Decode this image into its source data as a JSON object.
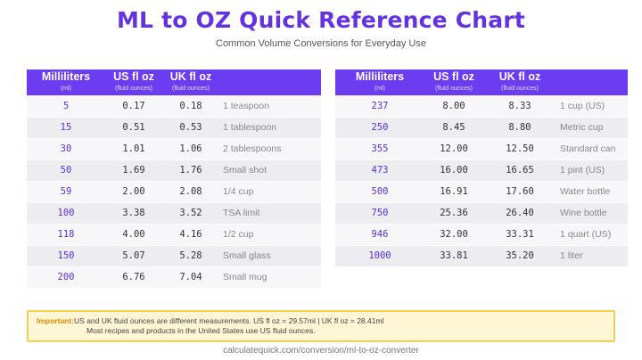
{
  "title": "ML to OZ Quick Reference Chart",
  "subtitle": "Common Volume Conversions for Everyday Use",
  "headers": {
    "ml": "Milliliters",
    "ml_sub": "(ml)",
    "us": "US fl oz",
    "us_sub": "(fluid ounces)",
    "uk": "UK fl oz",
    "uk_sub": "(fluid ounces)"
  },
  "left_rows": [
    {
      "ml": "5",
      "us": "0.17",
      "uk": "0.18",
      "note": "1 teaspoon"
    },
    {
      "ml": "15",
      "us": "0.51",
      "uk": "0.53",
      "note": "1 tablespoon"
    },
    {
      "ml": "30",
      "us": "1.01",
      "uk": "1.06",
      "note": "2 tablespoons"
    },
    {
      "ml": "50",
      "us": "1.69",
      "uk": "1.76",
      "note": "Small shot"
    },
    {
      "ml": "59",
      "us": "2.00",
      "uk": "2.08",
      "note": "1/4 cup"
    },
    {
      "ml": "100",
      "us": "3.38",
      "uk": "3.52",
      "note": "TSA limit"
    },
    {
      "ml": "118",
      "us": "4.00",
      "uk": "4.16",
      "note": "1/2 cup"
    },
    {
      "ml": "150",
      "us": "5.07",
      "uk": "5.28",
      "note": "Small glass"
    },
    {
      "ml": "200",
      "us": "6.76",
      "uk": "7.04",
      "note": "Small mug"
    }
  ],
  "right_rows": [
    {
      "ml": "237",
      "us": "8.00",
      "uk": "8.33",
      "note": "1 cup (US)"
    },
    {
      "ml": "250",
      "us": "8.45",
      "uk": "8.80",
      "note": "Metric cup"
    },
    {
      "ml": "355",
      "us": "12.00",
      "uk": "12.50",
      "note": "Standard can"
    },
    {
      "ml": "473",
      "us": "16.00",
      "uk": "16.65",
      "note": "1 pint (US)"
    },
    {
      "ml": "500",
      "us": "16.91",
      "uk": "17.60",
      "note": "Water bottle"
    },
    {
      "ml": "750",
      "us": "25.36",
      "uk": "26.40",
      "note": "Wine bottle"
    },
    {
      "ml": "946",
      "us": "32.00",
      "uk": "33.31",
      "note": "1 quart (US)"
    },
    {
      "ml": "1000",
      "us": "33.81",
      "uk": "35.20",
      "note": "1 liter"
    }
  ],
  "important": {
    "label": "Important:",
    "line1": "US and UK fluid ounces are different measurements. US fl oz = 29.57ml  |  UK fl oz = 28.41ml",
    "line2": "Most recipes and products in the United States use US fluid ounces."
  },
  "footer": "calculatequick.com/conversion/ml-to-oz-converter",
  "colors": {
    "accent": "#6432e0",
    "header_bg": "#6b3cf0",
    "callout_bg": "#fff6d6",
    "callout_border": "#f2cf55",
    "callout_label": "#e08a00"
  }
}
